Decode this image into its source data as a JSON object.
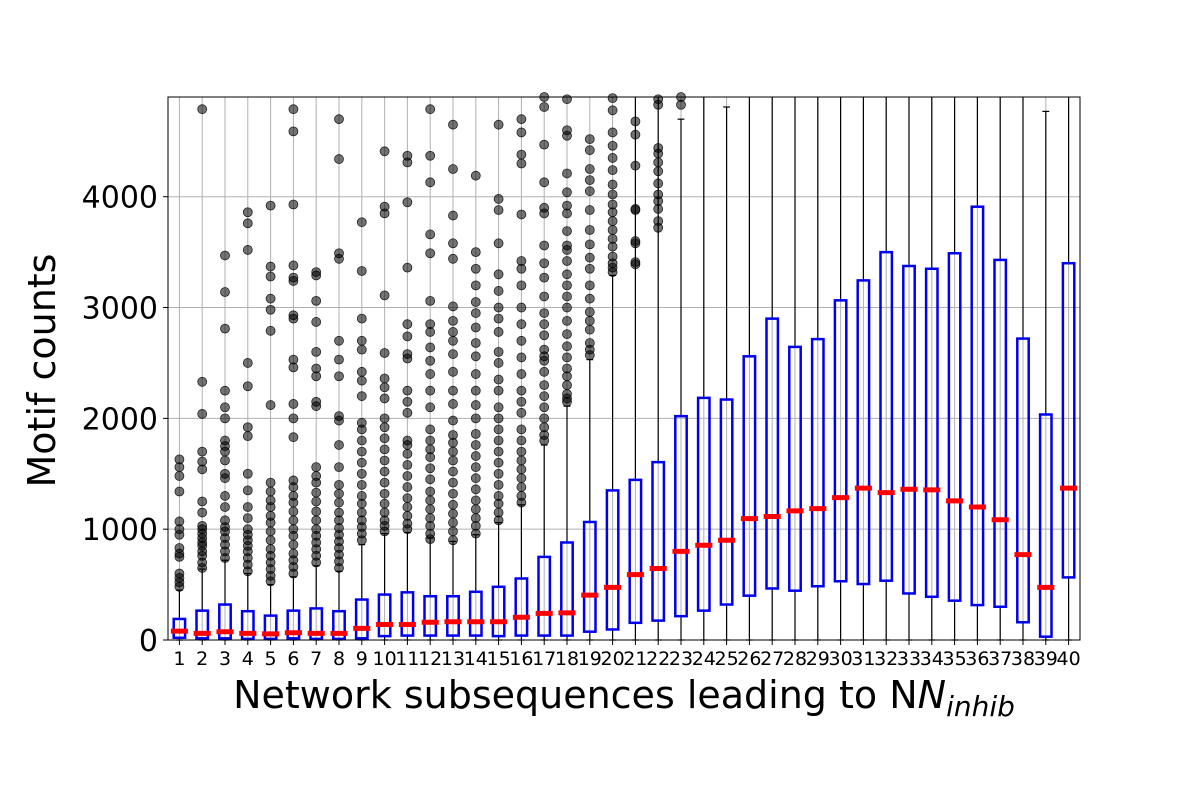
{
  "chart_data": {
    "type": "box",
    "xlabel": "Network subsequences leading to N",
    "xlabel_subscript": "inhib",
    "ylabel": "Motif counts",
    "ylim": [
      0,
      4900
    ],
    "yticks": [
      0,
      1000,
      2000,
      3000,
      4000
    ],
    "grid": true,
    "colors": {
      "box": "#0000ee",
      "median": "#ff0000",
      "whisker": "#000000",
      "outlier": "#000000"
    },
    "categories": [
      "1",
      "2",
      "3",
      "4",
      "5",
      "6",
      "7",
      "8",
      "9",
      "10",
      "11",
      "12",
      "13",
      "14",
      "15",
      "16",
      "17",
      "18",
      "19",
      "20",
      "21",
      "22",
      "23",
      "24",
      "25",
      "26",
      "27",
      "28",
      "29",
      "30",
      "31",
      "32",
      "33",
      "34",
      "35",
      "36",
      "37",
      "38",
      "39",
      "40"
    ],
    "q1": [
      20,
      15,
      15,
      10,
      10,
      15,
      10,
      10,
      15,
      35,
      40,
      40,
      40,
      40,
      35,
      40,
      40,
      40,
      75,
      95,
      155,
      175,
      215,
      265,
      320,
      400,
      465,
      445,
      485,
      530,
      505,
      535,
      420,
      390,
      355,
      315,
      300,
      160,
      30,
      565
    ],
    "median": [
      80,
      60,
      75,
      60,
      55,
      65,
      60,
      60,
      105,
      140,
      140,
      160,
      165,
      165,
      165,
      205,
      240,
      245,
      405,
      475,
      590,
      645,
      800,
      855,
      900,
      1095,
      1115,
      1165,
      1185,
      1285,
      1370,
      1330,
      1360,
      1355,
      1255,
      1200,
      1085,
      770,
      475,
      1370
    ],
    "q3": [
      190,
      265,
      320,
      260,
      220,
      265,
      285,
      260,
      365,
      410,
      430,
      395,
      395,
      435,
      480,
      555,
      750,
      880,
      1065,
      1350,
      1445,
      1605,
      2020,
      2185,
      2170,
      2560,
      2900,
      2645,
      2715,
      3065,
      3245,
      3500,
      3375,
      3350,
      3490,
      3910,
      3430,
      2720,
      2035,
      3400
    ],
    "whisker_low": [
      0,
      0,
      0,
      0,
      0,
      0,
      0,
      0,
      0,
      0,
      0,
      0,
      0,
      0,
      0,
      0,
      0,
      0,
      0,
      0,
      0,
      0,
      0,
      0,
      0,
      0,
      0,
      0,
      0,
      0,
      0,
      0,
      0,
      0,
      0,
      0,
      0,
      0,
      0,
      0
    ],
    "whisker_high": [
      450,
      640,
      720,
      600,
      500,
      570,
      670,
      620,
      860,
      960,
      970,
      920,
      890,
      950,
      1060,
      1220,
      1760,
      2110,
      2530,
      3290,
      4900,
      4900,
      4700,
      4900,
      4810,
      4900,
      4900,
      4900,
      4900,
      4900,
      4900,
      4900,
      4900,
      4900,
      4900,
      4900,
      4900,
      4900,
      4770,
      4900
    ],
    "outliers": [
      [
        480,
        520,
        560,
        600,
        750,
        780,
        830,
        950,
        1000,
        1070,
        1340,
        1480,
        1560,
        1630
      ],
      [
        650,
        700,
        760,
        800,
        850,
        880,
        920,
        960,
        1000,
        1030,
        1150,
        1250,
        1540,
        1610,
        1700,
        2040,
        2330,
        4790
      ],
      [
        740,
        800,
        860,
        920,
        980,
        1020,
        1080,
        1200,
        1300,
        1460,
        1500,
        1620,
        1700,
        1750,
        1800,
        2000,
        2100,
        2250,
        2810,
        3140,
        3470
      ],
      [
        620,
        680,
        740,
        800,
        850,
        900,
        950,
        1000,
        1100,
        1200,
        1350,
        1500,
        1840,
        1920,
        2290,
        2500,
        3520,
        3760,
        3860
      ],
      [
        530,
        580,
        640,
        700,
        760,
        820,
        900,
        980,
        1060,
        1120,
        1200,
        1260,
        1340,
        1420,
        2120,
        2790,
        2980,
        3080,
        3280,
        3370,
        3920
      ],
      [
        600,
        660,
        720,
        780,
        860,
        940,
        1000,
        1080,
        1160,
        1240,
        1300,
        1380,
        1440,
        1830,
        2000,
        2130,
        2460,
        2530,
        2900,
        2930,
        3240,
        3270,
        3380,
        3930,
        4590,
        4790
      ],
      [
        700,
        760,
        820,
        880,
        940,
        1000,
        1080,
        1160,
        1250,
        1330,
        1420,
        1480,
        1560,
        2110,
        2150,
        2380,
        2450,
        2600,
        2870,
        3060,
        3290,
        3320
      ],
      [
        650,
        710,
        770,
        830,
        890,
        950,
        1010,
        1080,
        1150,
        1240,
        1320,
        1400,
        1560,
        1760,
        1980,
        2020,
        2380,
        2530,
        2700,
        3440,
        3490,
        4340,
        4700
      ],
      [
        900,
        960,
        1020,
        1080,
        1150,
        1230,
        1300,
        1400,
        1500,
        1600,
        1700,
        1800,
        1900,
        1960,
        2200,
        2340,
        2420,
        2620,
        2700,
        2900,
        3330,
        3770
      ],
      [
        980,
        1030,
        1080,
        1150,
        1230,
        1320,
        1420,
        1520,
        1620,
        1720,
        1820,
        1920,
        2000,
        2180,
        2280,
        2360,
        2590,
        3110,
        3850,
        3910,
        4410
      ],
      [
        1000,
        1050,
        1120,
        1200,
        1280,
        1380,
        1480,
        1580,
        1680,
        1760,
        1800,
        2050,
        2150,
        2250,
        2540,
        2580,
        2740,
        2850,
        3360,
        3950,
        4310,
        4370
      ],
      [
        910,
        960,
        1030,
        1100,
        1180,
        1260,
        1340,
        1450,
        1550,
        1650,
        1720,
        1800,
        1900,
        2100,
        2250,
        2400,
        2520,
        2640,
        2780,
        2850,
        3060,
        3490,
        3660,
        4130,
        4370,
        4790
      ],
      [
        900,
        980,
        1060,
        1140,
        1220,
        1320,
        1420,
        1520,
        1620,
        1700,
        1780,
        1850,
        1980,
        2130,
        2250,
        2420,
        2580,
        2700,
        2780,
        2880,
        3010,
        3440,
        3580,
        3830,
        4250,
        4650
      ],
      [
        960,
        1030,
        1100,
        1180,
        1260,
        1360,
        1460,
        1560,
        1660,
        1760,
        1860,
        2000,
        2120,
        2250,
        2400,
        2560,
        2680,
        2820,
        2950,
        3050,
        3200,
        3350,
        3500,
        4190
      ],
      [
        1080,
        1150,
        1230,
        1300,
        1400,
        1500,
        1600,
        1700,
        1800,
        1900,
        2000,
        2100,
        2250,
        2350,
        2500,
        2600,
        2780,
        2900,
        3000,
        3150,
        3300,
        3580,
        3880,
        3980,
        4650
      ],
      [
        1240,
        1300,
        1380,
        1460,
        1540,
        1620,
        1700,
        1800,
        1900,
        2050,
        2150,
        2250,
        2400,
        2550,
        2700,
        2850,
        3000,
        3200,
        3350,
        3420,
        3840,
        4300,
        4380,
        4580,
        4700
      ],
      [
        1800,
        1850,
        1920,
        2000,
        2100,
        2200,
        2300,
        2420,
        2520,
        2560,
        2620,
        2750,
        2850,
        2950,
        3100,
        3270,
        3400,
        3560,
        3850,
        3900,
        4130,
        4470,
        4810,
        4900
      ],
      [
        2150,
        2180,
        2220,
        2300,
        2380,
        2450,
        2550,
        2650,
        2760,
        2880,
        3000,
        3100,
        3200,
        3300,
        3420,
        3520,
        3560,
        3690,
        3850,
        3920,
        4040,
        4210,
        4550,
        4600,
        4880
      ],
      [
        2570,
        2620,
        2680,
        2800,
        2880,
        2960,
        3080,
        3200,
        3350,
        3450,
        3570,
        3700,
        3880,
        4050,
        4150,
        4250,
        4420,
        4520
      ],
      [
        3320,
        3360,
        3400,
        3460,
        3550,
        3620,
        3700,
        3780,
        3860,
        3930,
        4020,
        4110,
        4240,
        4350,
        4460,
        4580,
        4780,
        4890
      ],
      [
        3390,
        3410,
        3580,
        3600,
        3880,
        3890,
        4280,
        4560,
        4680
      ],
      [
        3720,
        3780,
        3890,
        3960,
        4020,
        4120,
        4230,
        4310,
        4390,
        4440,
        4830,
        4880
      ],
      [
        4830,
        4900
      ],
      [],
      [],
      [],
      [],
      [],
      [],
      [],
      [],
      [],
      [],
      [],
      [],
      [],
      [],
      [],
      [],
      []
    ]
  }
}
